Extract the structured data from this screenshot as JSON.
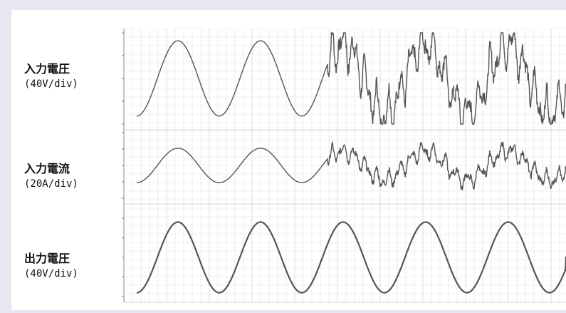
{
  "chart_data": {
    "type": "line",
    "title": "",
    "panels": [
      {
        "name": "入力電圧",
        "scale": "(40V/div)",
        "waveform": "sine then distorted",
        "cycles": 5.2,
        "phase_deg": 0,
        "clean_cycles": 2.4,
        "y_divisions": 4,
        "ylim": [
          -2,
          2
        ],
        "peak_clean": 1.65,
        "peak_distorted": 1.9
      },
      {
        "name": "入力電流",
        "scale": "(20A/div)",
        "waveform": "sine then distorted",
        "cycles": 5.2,
        "phase_deg": 0,
        "clean_cycles": 2.4,
        "y_divisions": 4,
        "ylim": [
          -2,
          2
        ],
        "peak_clean": 1.05,
        "peak_distorted": 1.1
      },
      {
        "name": "出力電圧",
        "scale": "(40V/div)",
        "waveform": "sine",
        "cycles": 5.2,
        "phase_deg": 0,
        "clean_cycles": 5.2,
        "y_divisions": 4,
        "ylim": [
          -2,
          2
        ],
        "peak_clean": 1.8,
        "peak_distorted": 1.8
      }
    ],
    "grid": true,
    "colors": {
      "trace": "#555555",
      "grid_major": "#c8c8c8",
      "grid_minor": "#e2e2e2",
      "background": "#ffffff",
      "frame": "#e9e6f2"
    }
  }
}
